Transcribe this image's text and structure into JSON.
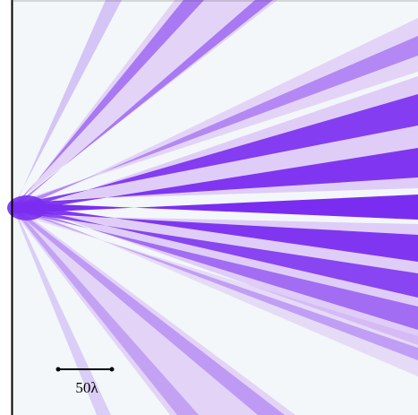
{
  "scale_bar": {
    "label": "50λ"
  }
}
